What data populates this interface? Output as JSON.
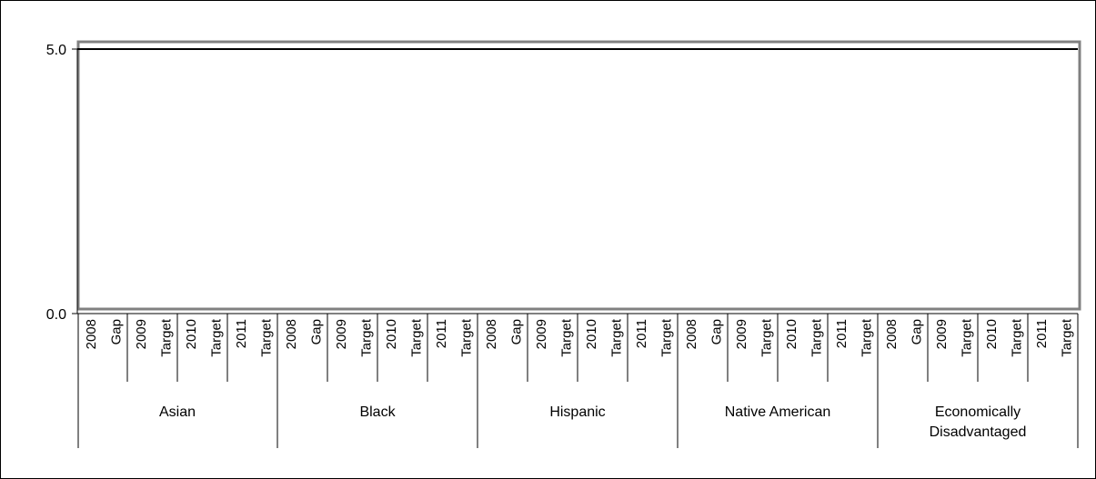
{
  "chart_data": {
    "type": "bar",
    "title": "",
    "xlabel": "",
    "ylabel": "",
    "ylim": [
      0,
      5
    ],
    "y_ticks": [
      "0.0",
      "5.0"
    ],
    "grid": false,
    "legend": "none",
    "groups": [
      {
        "name": "Asian",
        "categories": [
          "2008",
          "Gap",
          "2009",
          "Target",
          "2010",
          "Target",
          "2011",
          "Target"
        ]
      },
      {
        "name": "Black",
        "categories": [
          "2008",
          "Gap",
          "2009",
          "Target",
          "2010",
          "Target",
          "2011",
          "Target"
        ]
      },
      {
        "name": "Hispanic",
        "categories": [
          "2008",
          "Gap",
          "2009",
          "Target",
          "2010",
          "Target",
          "2011",
          "Target"
        ]
      },
      {
        "name": "Native American",
        "categories": [
          "2008",
          "Gap",
          "2009",
          "Target",
          "2010",
          "Target",
          "2011",
          "Target"
        ]
      },
      {
        "name": "Economically Disadvantaged",
        "categories": [
          "2008",
          "Gap",
          "2009",
          "Target",
          "2010",
          "Target",
          "2011",
          "Target"
        ]
      }
    ],
    "series": [
      {
        "values": [
          null,
          null,
          null,
          null,
          null,
          null,
          null,
          null,
          null,
          null,
          null,
          null,
          null,
          null,
          null,
          null,
          null,
          null,
          null,
          null,
          null,
          null,
          null,
          null,
          null,
          null,
          null,
          null,
          null,
          null,
          null,
          null,
          null,
          null,
          null,
          null,
          null,
          null,
          null,
          null
        ]
      }
    ],
    "colors": {
      "axis": "#000000",
      "plot_border": "#808080",
      "frame": "#000000"
    }
  }
}
